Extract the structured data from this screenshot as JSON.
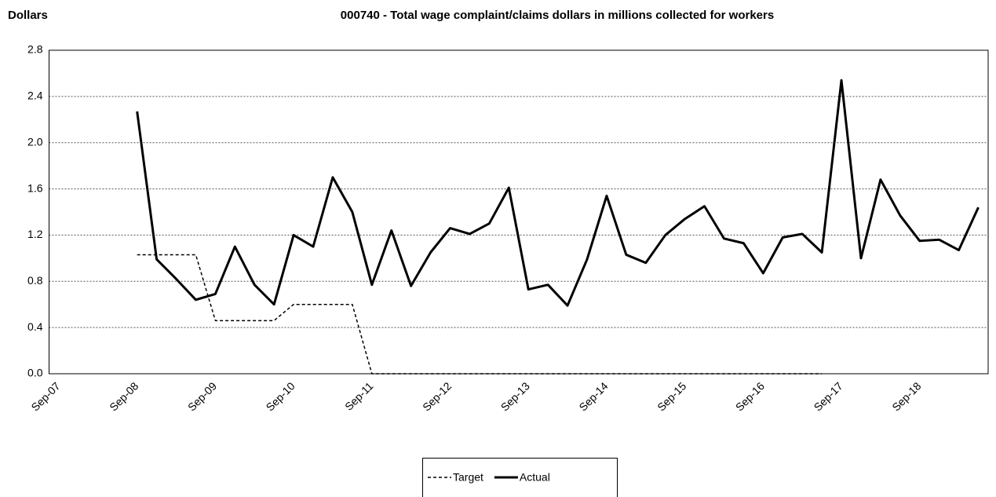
{
  "chart_data": {
    "type": "line",
    "title": "000740 - Total wage complaint/claims dollars in millions collected for workers",
    "y_label": "Dollars",
    "categories": [
      "Sep-07",
      null,
      null,
      null,
      "Sep-08",
      null,
      null,
      null,
      "Sep-09",
      null,
      null,
      null,
      "Sep-10",
      null,
      null,
      null,
      "Sep-11",
      null,
      null,
      null,
      "Sep-12",
      null,
      null,
      null,
      "Sep-13",
      null,
      null,
      null,
      "Sep-14",
      null,
      null,
      null,
      "Sep-15",
      null,
      null,
      null,
      "Sep-16",
      null,
      null,
      null,
      "Sep-17",
      null,
      null,
      null,
      "Sep-18",
      null,
      null,
      null
    ],
    "series": [
      {
        "name": "Target",
        "color": "#000000",
        "dash": true,
        "values": [
          null,
          null,
          null,
          null,
          1.03,
          1.03,
          1.03,
          1.03,
          0.46,
          0.46,
          0.46,
          0.46,
          0.6,
          0.6,
          0.6,
          0.6,
          0,
          0,
          0,
          0,
          0,
          0,
          0,
          0,
          0,
          0,
          0,
          0,
          0,
          0,
          0,
          0,
          0,
          0,
          0,
          0,
          0,
          0,
          0,
          0,
          null,
          null,
          null,
          null,
          null,
          null,
          null,
          null
        ]
      },
      {
        "name": "Actual",
        "color": "#000000",
        "dash": false,
        "values": [
          null,
          null,
          null,
          null,
          2.27,
          0.99,
          0.82,
          0.64,
          0.69,
          1.1,
          0.77,
          0.6,
          1.2,
          1.1,
          1.7,
          1.4,
          0.77,
          1.24,
          0.76,
          1.05,
          1.26,
          1.21,
          1.3,
          1.61,
          0.73,
          0.77,
          0.59,
          0.99,
          1.54,
          1.03,
          0.96,
          1.2,
          1.34,
          1.45,
          1.17,
          1.13,
          0.87,
          1.18,
          1.21,
          1.05,
          2.54,
          1.0,
          1.68,
          1.37,
          1.15,
          1.16,
          1.07,
          1.44
        ]
      }
    ],
    "ylim": [
      0,
      2.8
    ],
    "yticks": [
      {
        "value": 0,
        "label": "0.0"
      },
      0.4,
      0.8,
      1.2,
      1.6,
      {
        "value": 2,
        "label": "2.0"
      },
      2.4,
      2.8
    ],
    "grid": true,
    "legend": "bottom"
  }
}
